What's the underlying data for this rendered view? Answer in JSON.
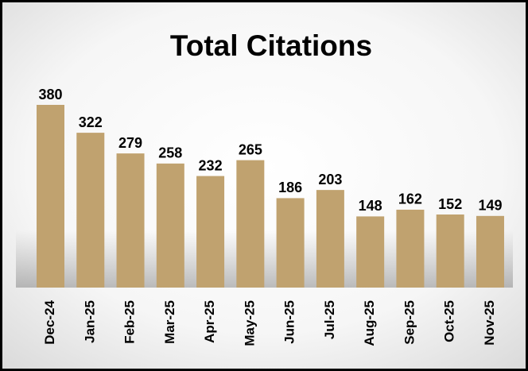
{
  "chart_data": {
    "type": "bar",
    "title": "Total Citations",
    "categories": [
      "Dec-24",
      "Jan-25",
      "Feb-25",
      "Mar-25",
      "Apr-25",
      "May-25",
      "Jun-25",
      "Jul-25",
      "Aug-25",
      "Sep-25",
      "Oct-25",
      "Nov-25"
    ],
    "values": [
      380,
      322,
      279,
      258,
      232,
      265,
      186,
      203,
      148,
      162,
      152,
      149
    ],
    "color": "#c0a26f"
  }
}
